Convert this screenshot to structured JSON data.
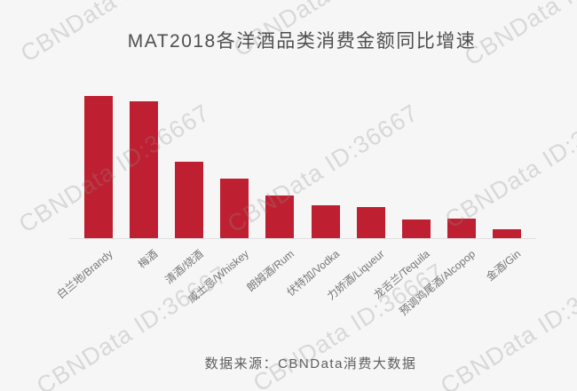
{
  "chart_data": {
    "type": "bar",
    "title": "MAT2018各洋酒品类消费金额同比增速",
    "categories": [
      "白兰地/Brandy",
      "梅酒",
      "清酒/烧酒",
      "威士忌/Whiskey",
      "朗姆酒/Rum",
      "伏特加/Vodka",
      "力娇酒/Liqueur",
      "龙舌兰/Tequila",
      "预调鸡尾酒/Alcopop",
      "金酒/Gin"
    ],
    "values_relative_pct_of_max": [
      100,
      96,
      54,
      42,
      30,
      23,
      22,
      13,
      14,
      6
    ],
    "value_axis": "unlabeled — no ticks, gridlines or data labels shown; values are relative bar heights (% of tallest bar)",
    "xlabel": "",
    "ylabel": "",
    "legend": false,
    "grid": false,
    "bar_color": "#bf2031"
  },
  "footer": {
    "source": "数据来源：CBNData消费大数据"
  },
  "watermark": {
    "text": "CBNData ID:36667",
    "color": "rgba(140,140,140,0.28)"
  }
}
